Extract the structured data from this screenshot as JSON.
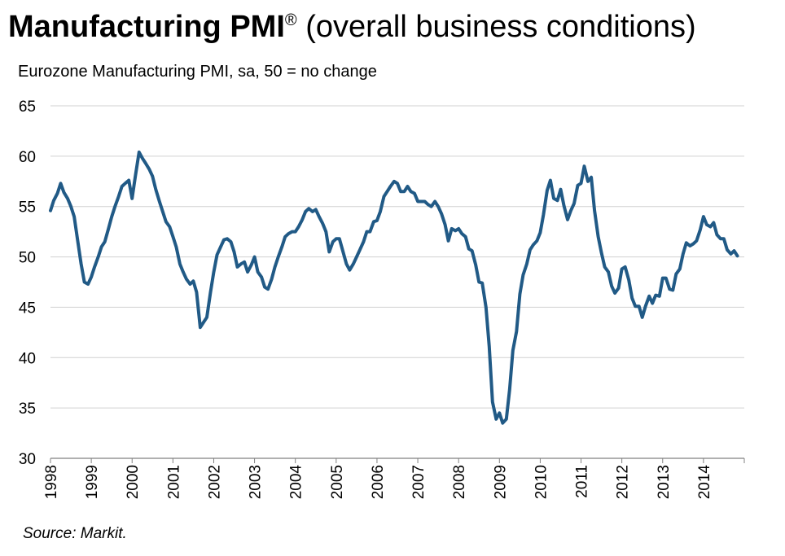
{
  "title": {
    "bold": "Manufacturing PMI",
    "reg_mark": "®",
    "rest": " (overall business conditions)"
  },
  "subtitle": "Eurozone Manufacturing PMI, sa, 50 = no change",
  "source": "Source: Markit.",
  "colors": {
    "line": "#215A86",
    "grid": "#D0D0D0",
    "axis": "#808080"
  },
  "chart_data": {
    "type": "line",
    "title": "Manufacturing PMI® (overall business conditions)",
    "subtitle": "Eurozone Manufacturing PMI, sa, 50 = no change",
    "x_unit": "year",
    "xlim": [
      1998,
      2015
    ],
    "ylim": [
      30,
      65
    ],
    "y_ticks": [
      30,
      35,
      40,
      45,
      50,
      55,
      60,
      65
    ],
    "x_ticks": [
      "1998",
      "1999",
      "2000",
      "2001",
      "2002",
      "2003",
      "2004",
      "2005",
      "2006",
      "2007",
      "2008",
      "2009",
      "2010",
      "2011",
      "2012",
      "2013",
      "2014"
    ],
    "grid": true,
    "legend": "none",
    "series": [
      {
        "values": [
          [
            1998.0,
            54.6
          ],
          [
            1998.08,
            55.6
          ],
          [
            1998.17,
            56.3
          ],
          [
            1998.25,
            57.3
          ],
          [
            1998.33,
            56.4
          ],
          [
            1998.42,
            55.8
          ],
          [
            1998.5,
            55.0
          ],
          [
            1998.58,
            54.0
          ],
          [
            1998.67,
            51.5
          ],
          [
            1998.75,
            49.3
          ],
          [
            1998.83,
            47.5
          ],
          [
            1998.92,
            47.3
          ],
          [
            1999.0,
            48.0
          ],
          [
            1999.08,
            49.0
          ],
          [
            1999.17,
            50.0
          ],
          [
            1999.25,
            51.0
          ],
          [
            1999.33,
            51.5
          ],
          [
            1999.42,
            52.8
          ],
          [
            1999.5,
            54.0
          ],
          [
            1999.58,
            55.0
          ],
          [
            1999.67,
            56.0
          ],
          [
            1999.75,
            57.0
          ],
          [
            1999.83,
            57.3
          ],
          [
            1999.92,
            57.6
          ],
          [
            2000.0,
            55.8
          ],
          [
            2000.08,
            58.0
          ],
          [
            2000.17,
            60.4
          ],
          [
            2000.25,
            59.8
          ],
          [
            2000.33,
            59.3
          ],
          [
            2000.42,
            58.7
          ],
          [
            2000.5,
            58.0
          ],
          [
            2000.58,
            56.7
          ],
          [
            2000.67,
            55.5
          ],
          [
            2000.75,
            54.5
          ],
          [
            2000.83,
            53.5
          ],
          [
            2000.92,
            53.0
          ],
          [
            2001.0,
            52.0
          ],
          [
            2001.08,
            51.0
          ],
          [
            2001.17,
            49.3
          ],
          [
            2001.25,
            48.5
          ],
          [
            2001.33,
            47.8
          ],
          [
            2001.42,
            47.3
          ],
          [
            2001.5,
            47.6
          ],
          [
            2001.58,
            46.5
          ],
          [
            2001.67,
            43.0
          ],
          [
            2001.75,
            43.5
          ],
          [
            2001.83,
            44.0
          ],
          [
            2001.92,
            46.5
          ],
          [
            2002.0,
            48.5
          ],
          [
            2002.08,
            50.2
          ],
          [
            2002.17,
            51.0
          ],
          [
            2002.25,
            51.7
          ],
          [
            2002.33,
            51.8
          ],
          [
            2002.42,
            51.5
          ],
          [
            2002.5,
            50.5
          ],
          [
            2002.58,
            49.0
          ],
          [
            2002.67,
            49.3
          ],
          [
            2002.75,
            49.5
          ],
          [
            2002.83,
            48.5
          ],
          [
            2002.92,
            49.2
          ],
          [
            2003.0,
            50.0
          ],
          [
            2003.08,
            48.5
          ],
          [
            2003.17,
            48.0
          ],
          [
            2003.25,
            47.0
          ],
          [
            2003.33,
            46.8
          ],
          [
            2003.42,
            47.8
          ],
          [
            2003.5,
            49.0
          ],
          [
            2003.58,
            50.0
          ],
          [
            2003.67,
            51.0
          ],
          [
            2003.75,
            52.0
          ],
          [
            2003.83,
            52.3
          ],
          [
            2003.92,
            52.5
          ],
          [
            2004.0,
            52.5
          ],
          [
            2004.08,
            53.0
          ],
          [
            2004.17,
            53.7
          ],
          [
            2004.25,
            54.5
          ],
          [
            2004.33,
            54.8
          ],
          [
            2004.42,
            54.5
          ],
          [
            2004.5,
            54.7
          ],
          [
            2004.58,
            54.0
          ],
          [
            2004.67,
            53.3
          ],
          [
            2004.75,
            52.5
          ],
          [
            2004.83,
            50.5
          ],
          [
            2004.92,
            51.5
          ],
          [
            2005.0,
            51.8
          ],
          [
            2005.08,
            51.8
          ],
          [
            2005.17,
            50.5
          ],
          [
            2005.25,
            49.3
          ],
          [
            2005.33,
            48.7
          ],
          [
            2005.42,
            49.3
          ],
          [
            2005.5,
            50.0
          ],
          [
            2005.58,
            50.7
          ],
          [
            2005.67,
            51.5
          ],
          [
            2005.75,
            52.5
          ],
          [
            2005.83,
            52.5
          ],
          [
            2005.92,
            53.5
          ],
          [
            2006.0,
            53.6
          ],
          [
            2006.08,
            54.5
          ],
          [
            2006.17,
            56.0
          ],
          [
            2006.25,
            56.5
          ],
          [
            2006.33,
            57.0
          ],
          [
            2006.42,
            57.5
          ],
          [
            2006.5,
            57.3
          ],
          [
            2006.58,
            56.5
          ],
          [
            2006.67,
            56.5
          ],
          [
            2006.75,
            57.0
          ],
          [
            2006.83,
            56.5
          ],
          [
            2006.92,
            56.3
          ],
          [
            2007.0,
            55.5
          ],
          [
            2007.08,
            55.5
          ],
          [
            2007.17,
            55.5
          ],
          [
            2007.25,
            55.2
          ],
          [
            2007.33,
            55.0
          ],
          [
            2007.42,
            55.5
          ],
          [
            2007.5,
            55.0
          ],
          [
            2007.58,
            54.3
          ],
          [
            2007.67,
            53.2
          ],
          [
            2007.75,
            51.6
          ],
          [
            2007.83,
            52.8
          ],
          [
            2007.92,
            52.6
          ],
          [
            2008.0,
            52.8
          ],
          [
            2008.08,
            52.3
          ],
          [
            2008.17,
            52.0
          ],
          [
            2008.25,
            50.8
          ],
          [
            2008.33,
            50.6
          ],
          [
            2008.42,
            49.2
          ],
          [
            2008.5,
            47.5
          ],
          [
            2008.58,
            47.4
          ],
          [
            2008.67,
            45.0
          ],
          [
            2008.75,
            41.1
          ],
          [
            2008.83,
            35.6
          ],
          [
            2008.92,
            33.9
          ],
          [
            2009.0,
            34.5
          ],
          [
            2009.08,
            33.5
          ],
          [
            2009.17,
            33.9
          ],
          [
            2009.25,
            36.8
          ],
          [
            2009.33,
            40.7
          ],
          [
            2009.42,
            42.6
          ],
          [
            2009.5,
            46.3
          ],
          [
            2009.58,
            48.2
          ],
          [
            2009.67,
            49.3
          ],
          [
            2009.75,
            50.7
          ],
          [
            2009.83,
            51.2
          ],
          [
            2009.92,
            51.6
          ],
          [
            2010.0,
            52.4
          ],
          [
            2010.08,
            54.2
          ],
          [
            2010.17,
            56.6
          ],
          [
            2010.25,
            57.6
          ],
          [
            2010.33,
            55.8
          ],
          [
            2010.42,
            55.6
          ],
          [
            2010.5,
            56.7
          ],
          [
            2010.58,
            55.1
          ],
          [
            2010.67,
            53.7
          ],
          [
            2010.75,
            54.6
          ],
          [
            2010.83,
            55.3
          ],
          [
            2010.92,
            57.1
          ],
          [
            2011.0,
            57.3
          ],
          [
            2011.08,
            59.0
          ],
          [
            2011.17,
            57.5
          ],
          [
            2011.25,
            57.9
          ],
          [
            2011.33,
            54.6
          ],
          [
            2011.42,
            52.0
          ],
          [
            2011.5,
            50.4
          ],
          [
            2011.58,
            49.0
          ],
          [
            2011.67,
            48.5
          ],
          [
            2011.75,
            47.1
          ],
          [
            2011.83,
            46.4
          ],
          [
            2011.92,
            46.9
          ],
          [
            2012.0,
            48.8
          ],
          [
            2012.08,
            49.0
          ],
          [
            2012.17,
            47.7
          ],
          [
            2012.25,
            45.9
          ],
          [
            2012.33,
            45.1
          ],
          [
            2012.42,
            45.1
          ],
          [
            2012.5,
            44.0
          ],
          [
            2012.58,
            45.1
          ],
          [
            2012.67,
            46.1
          ],
          [
            2012.75,
            45.4
          ],
          [
            2012.83,
            46.2
          ],
          [
            2012.92,
            46.1
          ],
          [
            2013.0,
            47.9
          ],
          [
            2013.08,
            47.9
          ],
          [
            2013.17,
            46.8
          ],
          [
            2013.25,
            46.7
          ],
          [
            2013.33,
            48.3
          ],
          [
            2013.42,
            48.8
          ],
          [
            2013.5,
            50.3
          ],
          [
            2013.58,
            51.4
          ],
          [
            2013.67,
            51.1
          ],
          [
            2013.75,
            51.3
          ],
          [
            2013.83,
            51.6
          ],
          [
            2013.92,
            52.7
          ],
          [
            2014.0,
            54.0
          ],
          [
            2014.08,
            53.2
          ],
          [
            2014.17,
            53.0
          ],
          [
            2014.25,
            53.4
          ],
          [
            2014.33,
            52.2
          ],
          [
            2014.42,
            51.8
          ],
          [
            2014.5,
            51.8
          ],
          [
            2014.58,
            50.7
          ],
          [
            2014.67,
            50.3
          ],
          [
            2014.75,
            50.6
          ],
          [
            2014.83,
            50.1
          ]
        ]
      }
    ]
  }
}
